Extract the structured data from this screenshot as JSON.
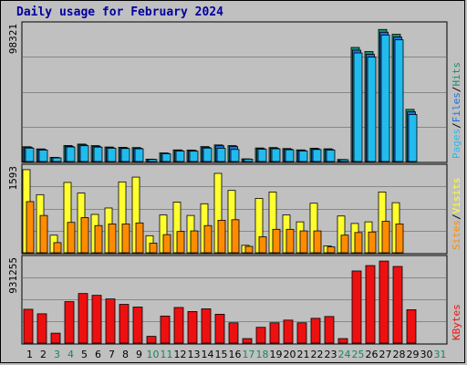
{
  "title": "Daily usage for February 2024",
  "colors": {
    "background": "#c0c0c0",
    "grid": "#888888",
    "title": "#0000a0",
    "pages": "#22bbee",
    "files": "#1f6fdd",
    "hits": "#1a8e6e",
    "visits": "#ffff30",
    "sites": "#ff8c00",
    "kbytes": "#ee1010",
    "weekday_label": "#000000",
    "weekend_label": "#16865a"
  },
  "chart_data": [
    {
      "type": "bar",
      "name": "hits-files-pages",
      "ymax_label": "98321",
      "ylim": [
        0,
        98321
      ],
      "legend": [
        "Pages",
        "Files",
        "Hits"
      ],
      "legend_separator": "/",
      "categories": [
        "1",
        "2",
        "3",
        "4",
        "5",
        "6",
        "7",
        "8",
        "9",
        "10",
        "11",
        "12",
        "13",
        "14",
        "15",
        "16",
        "17",
        "18",
        "19",
        "20",
        "21",
        "22",
        "23",
        "24",
        "25",
        "26",
        "27",
        "28",
        "29",
        "30",
        "31"
      ],
      "series": [
        {
          "name": "Hits",
          "values": [
            10700,
            9100,
            3000,
            11600,
            12600,
            11500,
            10500,
            10300,
            10100,
            1700,
            6200,
            8400,
            8300,
            10800,
            12000,
            11500,
            1900,
            9800,
            10100,
            9400,
            8400,
            9600,
            9200,
            1500,
            82500,
            79500,
            95500,
            92000,
            37700,
            0,
            0
          ]
        },
        {
          "name": "Files",
          "values": [
            10200,
            8700,
            2800,
            11000,
            12000,
            10900,
            10000,
            9800,
            9600,
            1600,
            5900,
            8000,
            7900,
            10200,
            11400,
            10900,
            1800,
            9300,
            9600,
            8900,
            8000,
            9100,
            8700,
            1400,
            80500,
            77500,
            93500,
            90000,
            35900,
            0,
            0
          ]
        },
        {
          "name": "Pages",
          "values": [
            9700,
            8300,
            2600,
            10500,
            11400,
            10400,
            9600,
            9400,
            9200,
            1500,
            5600,
            7600,
            7500,
            9700,
            9600,
            8700,
            1700,
            8900,
            9200,
            8500,
            7600,
            8700,
            8300,
            1300,
            78500,
            75500,
            91500,
            88000,
            34000,
            0,
            0
          ]
        }
      ]
    },
    {
      "type": "bar",
      "name": "visits-sites",
      "ymax_label": "1593",
      "ylim": [
        0,
        1593
      ],
      "legend": [
        "Sites",
        "Visits"
      ],
      "legend_separator": "/",
      "categories": [
        "1",
        "2",
        "3",
        "4",
        "5",
        "6",
        "7",
        "8",
        "9",
        "10",
        "11",
        "12",
        "13",
        "14",
        "15",
        "16",
        "17",
        "18",
        "19",
        "20",
        "21",
        "22",
        "23",
        "24",
        "25",
        "26",
        "27",
        "28",
        "29",
        "30",
        "31"
      ],
      "series": [
        {
          "name": "Visits",
          "values": [
            1560,
            1090,
            330,
            1320,
            1120,
            720,
            840,
            1330,
            1420,
            320,
            710,
            950,
            700,
            920,
            1490,
            1170,
            140,
            1020,
            1140,
            710,
            580,
            930,
            130,
            690,
            550,
            580,
            1140,
            940,
            0,
            0,
            0
          ]
        },
        {
          "name": "Sites",
          "values": [
            960,
            700,
            190,
            570,
            660,
            510,
            540,
            540,
            560,
            180,
            340,
            400,
            410,
            510,
            610,
            620,
            120,
            300,
            440,
            440,
            410,
            410,
            110,
            330,
            380,
            390,
            590,
            540,
            0,
            0,
            0
          ]
        }
      ]
    },
    {
      "type": "bar",
      "name": "kbytes",
      "ymax_label": "931255",
      "ylim": [
        0,
        931255
      ],
      "legend": [
        "KBytes"
      ],
      "categories": [
        "1",
        "2",
        "3",
        "4",
        "5",
        "6",
        "7",
        "8",
        "9",
        "10",
        "11",
        "12",
        "13",
        "14",
        "15",
        "16",
        "17",
        "18",
        "19",
        "20",
        "21",
        "22",
        "23",
        "24",
        "25",
        "26",
        "27",
        "28",
        "29",
        "30",
        "31"
      ],
      "series": [
        {
          "name": "KBytes",
          "values": [
            375000,
            325000,
            110000,
            460000,
            550000,
            530000,
            490000,
            430000,
            400000,
            75000,
            300000,
            395000,
            350000,
            380000,
            320000,
            225000,
            50000,
            175000,
            225000,
            255000,
            225000,
            275000,
            295000,
            50000,
            800000,
            860000,
            910000,
            850000,
            370000,
            0,
            0
          ]
        }
      ]
    }
  ],
  "days": [
    {
      "label": "1",
      "weekend": false
    },
    {
      "label": "2",
      "weekend": false
    },
    {
      "label": "3",
      "weekend": true
    },
    {
      "label": "4",
      "weekend": true
    },
    {
      "label": "5",
      "weekend": false
    },
    {
      "label": "6",
      "weekend": false
    },
    {
      "label": "7",
      "weekend": false
    },
    {
      "label": "8",
      "weekend": false
    },
    {
      "label": "9",
      "weekend": false
    },
    {
      "label": "10",
      "weekend": true
    },
    {
      "label": "11",
      "weekend": true
    },
    {
      "label": "12",
      "weekend": false
    },
    {
      "label": "13",
      "weekend": false
    },
    {
      "label": "14",
      "weekend": false
    },
    {
      "label": "15",
      "weekend": false
    },
    {
      "label": "16",
      "weekend": false
    },
    {
      "label": "17",
      "weekend": true
    },
    {
      "label": "18",
      "weekend": true
    },
    {
      "label": "19",
      "weekend": false
    },
    {
      "label": "20",
      "weekend": false
    },
    {
      "label": "21",
      "weekend": false
    },
    {
      "label": "22",
      "weekend": false
    },
    {
      "label": "23",
      "weekend": false
    },
    {
      "label": "24",
      "weekend": true
    },
    {
      "label": "25",
      "weekend": true
    },
    {
      "label": "26",
      "weekend": false
    },
    {
      "label": "27",
      "weekend": false
    },
    {
      "label": "28",
      "weekend": false
    },
    {
      "label": "29",
      "weekend": false
    },
    {
      "label": "30",
      "weekend": false
    },
    {
      "label": "31",
      "weekend": true
    }
  ]
}
